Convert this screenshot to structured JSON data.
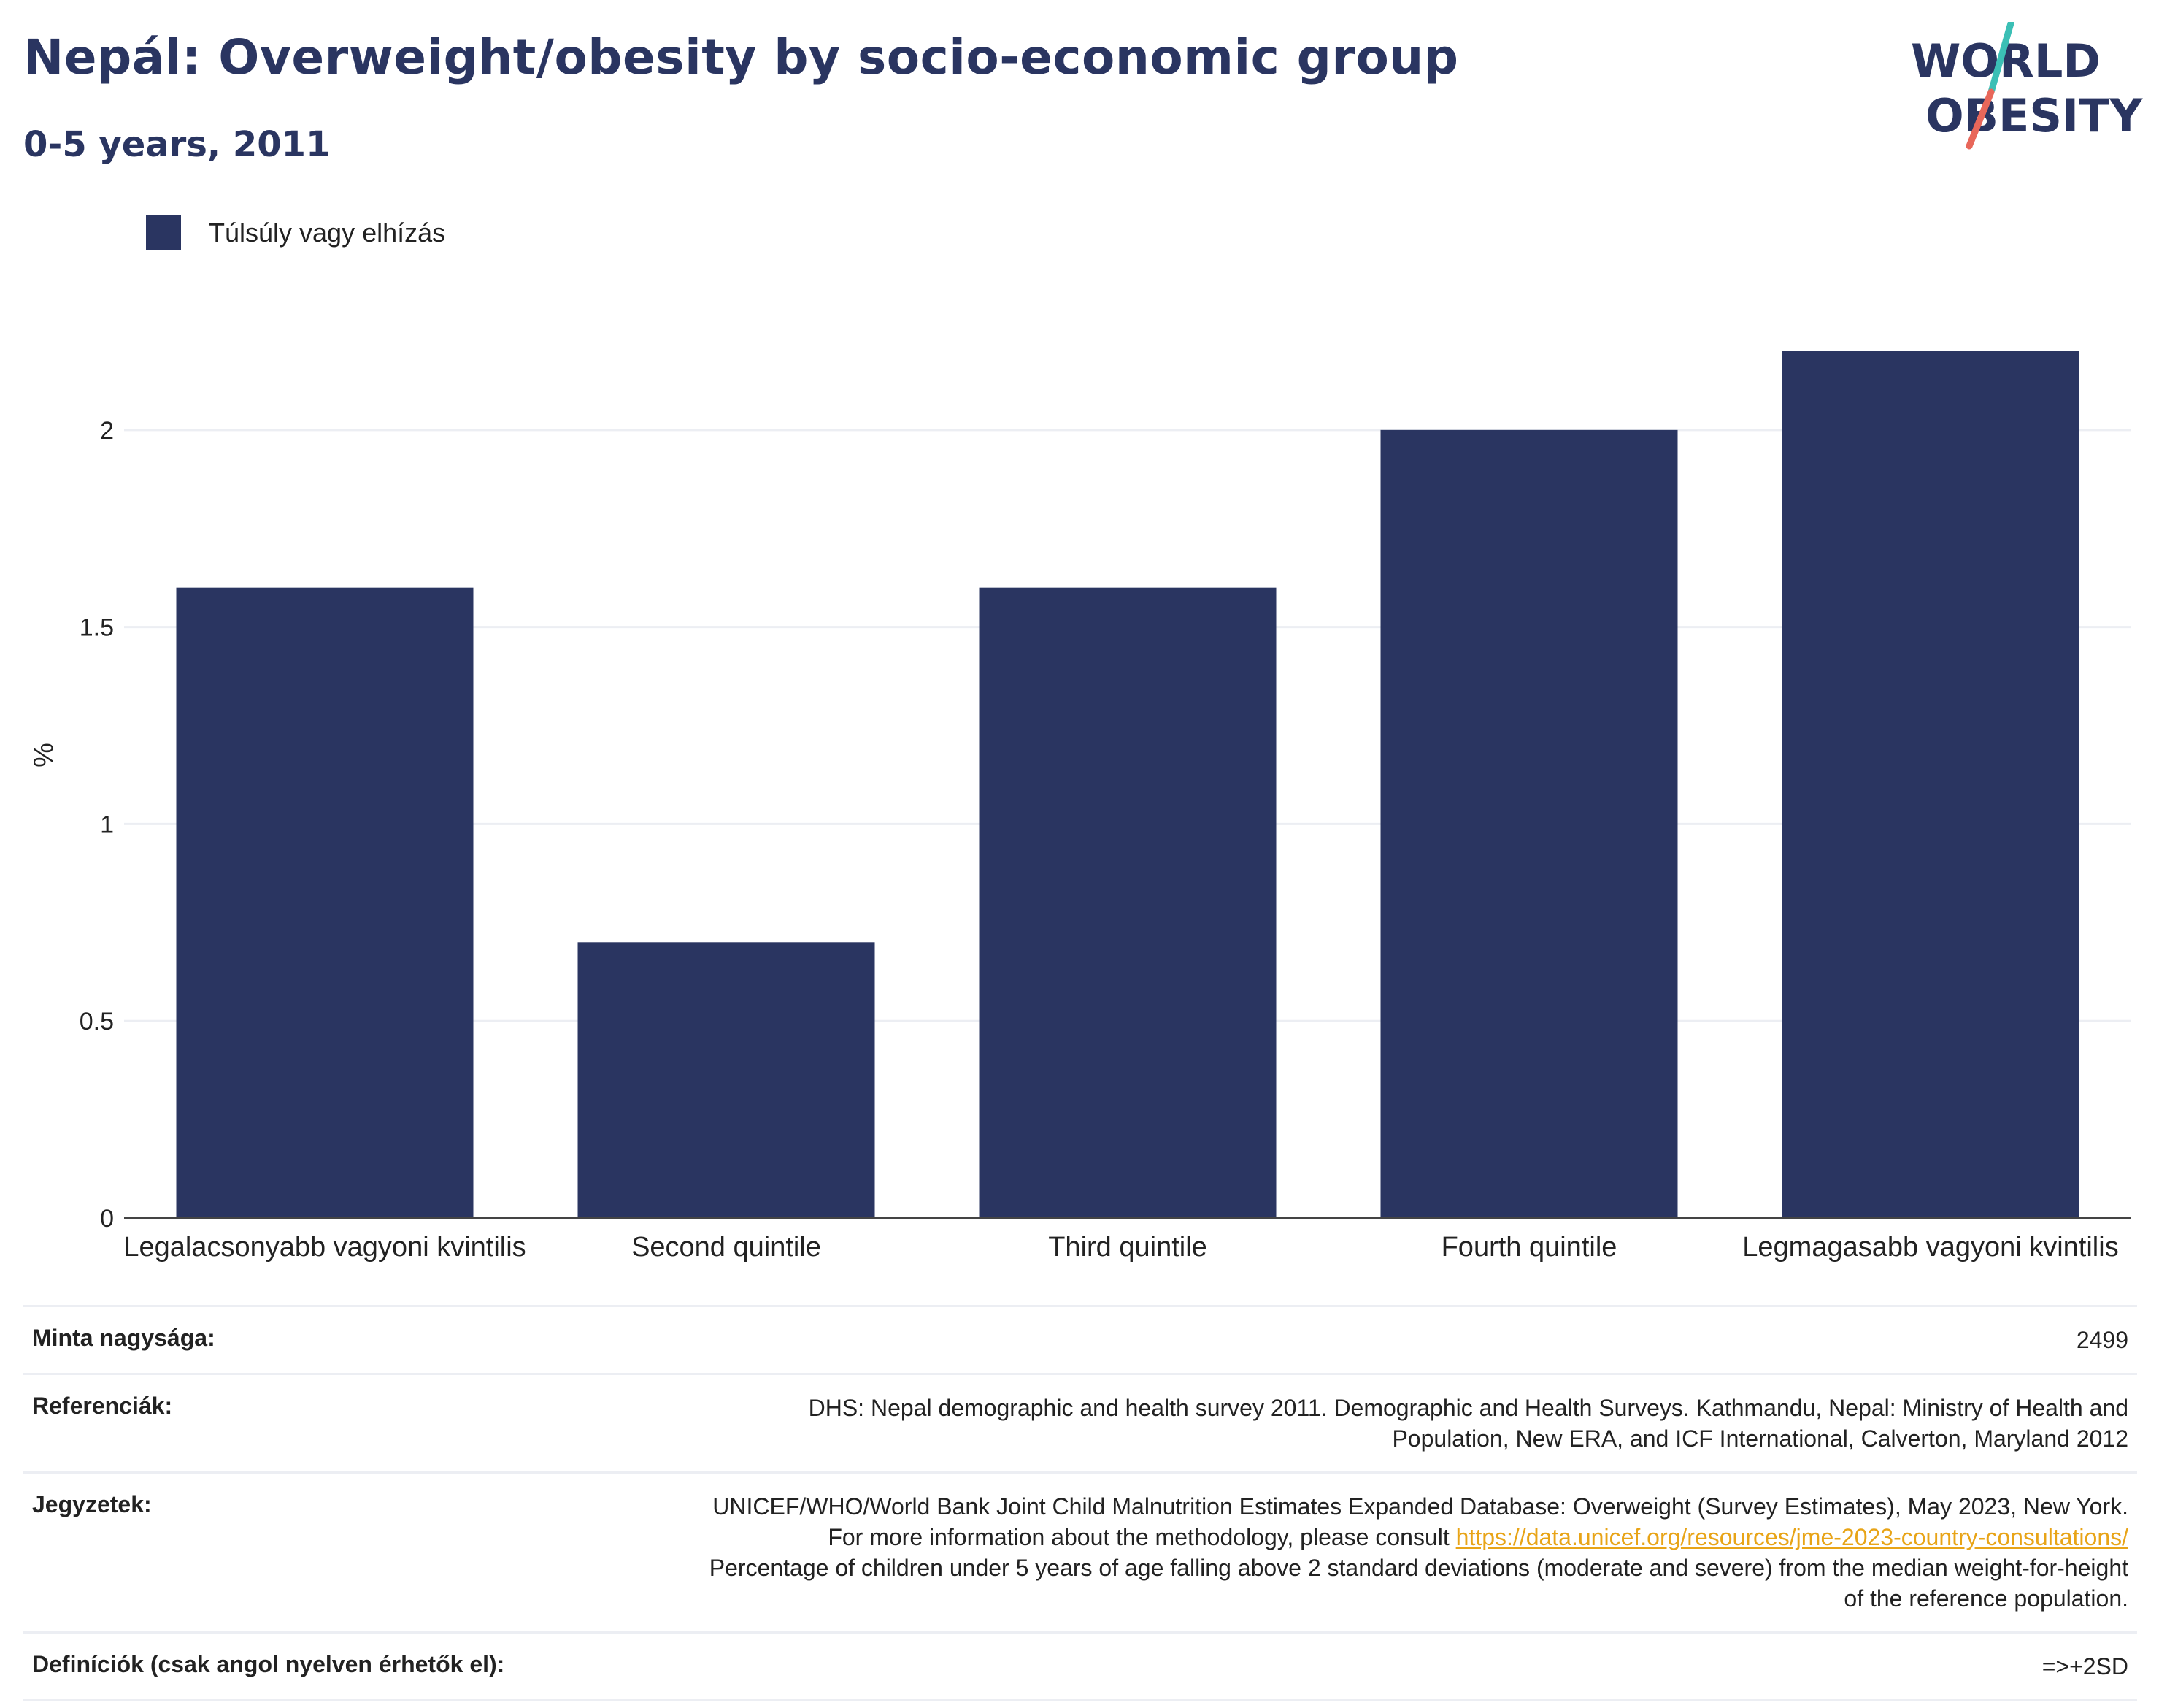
{
  "header": {
    "title": "Nepál: Overweight/obesity by socio-economic group",
    "subtitle": "0-5 years, 2011"
  },
  "logo": {
    "line1": "WORLD",
    "line2": "OBESITY",
    "colors": {
      "text": "#2a3561",
      "accent_teal": "#3bbfb5",
      "accent_coral": "#e8675a"
    }
  },
  "legend": {
    "label": "Túlsúly vagy elhízás",
    "color": "#2a3561"
  },
  "chart_data": {
    "type": "bar",
    "categories": [
      "Legalacsonyabb vagyoni kvintilis",
      "Second quintile",
      "Third quintile",
      "Fourth quintile",
      "Legmagasabb vagyoni kvintilis"
    ],
    "series": [
      {
        "name": "Túlsúly vagy elhízás",
        "values": [
          1.6,
          0.7,
          1.6,
          2.0,
          2.2
        ],
        "color": "#2a3561"
      }
    ],
    "ylabel": "%",
    "ylim": [
      0,
      2.35
    ],
    "yticks": [
      0,
      0.5,
      1,
      1.5,
      2
    ],
    "ytick_labels": [
      "0",
      "0.5",
      "1",
      "1.5",
      "2"
    ],
    "grid": true,
    "legend_position": "top-left"
  },
  "meta": {
    "sample_size": {
      "key": "Minta nagysága:",
      "value": "2499"
    },
    "references": {
      "key": "Referenciák:",
      "value": "DHS: Nepal demographic and health survey 2011. Demographic and Health Surveys. Kathmandu, Nepal: Ministry of Health and Population, New ERA, and ICF International, Calverton, Maryland 2012"
    },
    "notes": {
      "key": "Jegyzetek:",
      "text_before": "UNICEF/WHO/World Bank Joint Child Malnutrition Estimates Expanded Database: Overweight (Survey Estimates), May 2023, New York. For more information about the methodology, please consult ",
      "link": "https://data.unicef.org/resources/jme-2023-country-consultations/",
      "text_after": " Percentage of children under 5 years of age falling above 2 standard deviations (moderate and severe) from the median weight-for-height of the reference population."
    },
    "definitions": {
      "key": "Definíciók (csak angol nyelven érhetők el):",
      "value": "=>+2SD"
    }
  }
}
